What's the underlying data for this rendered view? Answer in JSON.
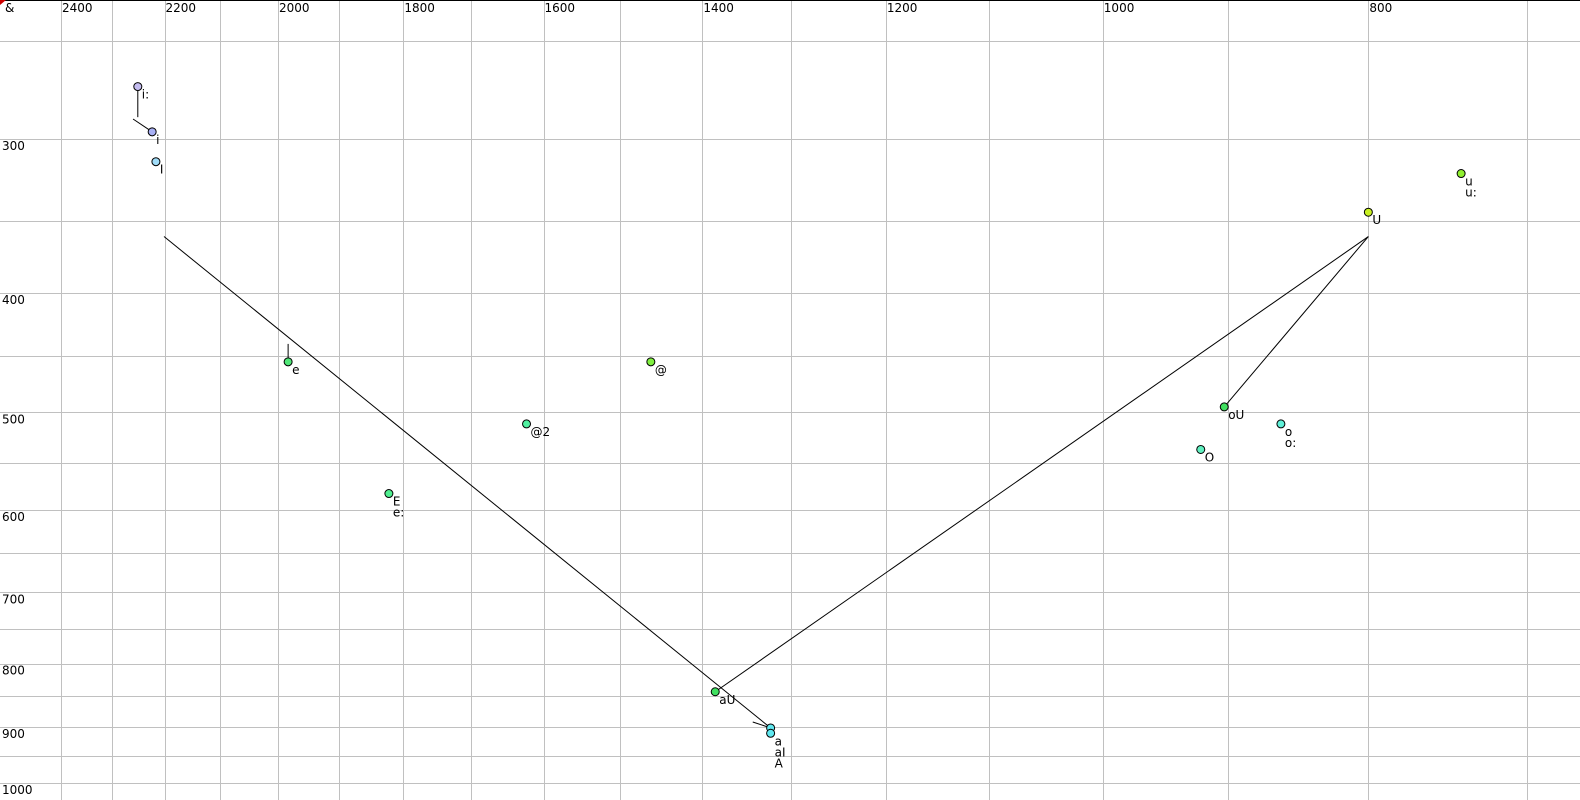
{
  "corner_label": "&",
  "colors": {
    "grid": "#c0c0c0",
    "line": "#000000",
    "corner_marker": "#cc0000"
  },
  "chart_data": {
    "type": "scatter",
    "x_scale": "log",
    "y_scale": "log",
    "x_reversed": true,
    "xlim": [
      2526,
      676
    ],
    "ylim": [
      231,
      1000
    ],
    "grid": true,
    "x_ticks": [
      2400,
      2200,
      2000,
      1800,
      1600,
      1400,
      1200,
      1000,
      800
    ],
    "y_ticks": [
      300,
      400,
      500,
      600,
      700,
      800,
      900,
      1000
    ],
    "x_grid": [
      2400,
      2300,
      2200,
      2100,
      2000,
      1900,
      1800,
      1700,
      1600,
      1500,
      1400,
      1300,
      1200,
      1100,
      1000,
      900,
      800,
      700
    ],
    "y_grid": [
      250,
      300,
      350,
      400,
      450,
      500,
      550,
      600,
      650,
      700,
      750,
      800,
      850,
      900,
      950,
      1000
    ],
    "points": [
      {
        "labels": [
          "i:"
        ],
        "f2": 2250,
        "f1": 272,
        "color": "#c4bcf0"
      },
      {
        "labels": [
          "i"
        ],
        "f2": 2223,
        "f1": 296,
        "color": "#a8b0f4"
      },
      {
        "labels": [
          "I"
        ],
        "f2": 2216,
        "f1": 313,
        "color": "#a0dcf8"
      },
      {
        "labels": [
          "e"
        ],
        "f2": 1983,
        "f1": 455,
        "color": "#50e878"
      },
      {
        "labels": [
          "E",
          "e:"
        ],
        "f2": 1822,
        "f1": 582,
        "color": "#50f090"
      },
      {
        "labels": [
          "@2"
        ],
        "f2": 1623,
        "f1": 511,
        "color": "#50f0a0"
      },
      {
        "labels": [
          "@"
        ],
        "f2": 1462,
        "f1": 455,
        "color": "#80f040"
      },
      {
        "labels": [
          "aU"
        ],
        "f2": 1385,
        "f1": 843,
        "color": "#40e060"
      },
      {
        "labels": [],
        "f2": 1322,
        "f1": 902,
        "color": "#60e8f0"
      },
      {
        "labels": [
          "a",
          "aI",
          "A"
        ],
        "f2": 1322,
        "f1": 911,
        "color": "#60e8f0"
      },
      {
        "labels": [
          "O"
        ],
        "f2": 921,
        "f1": 536,
        "color": "#60f0c0"
      },
      {
        "labels": [
          "oU"
        ],
        "f2": 903,
        "f1": 495,
        "color": "#40e060"
      },
      {
        "labels": [
          "o",
          "o:"
        ],
        "f2": 861,
        "f1": 511,
        "color": "#60f0d8"
      },
      {
        "labels": [
          "U"
        ],
        "f2": 800,
        "f1": 344,
        "color": "#c8f020"
      },
      {
        "labels": [
          "u",
          "u:"
        ],
        "f2": 740,
        "f1": 320,
        "color": "#90f030"
      }
    ],
    "trajectories": [
      {
        "from": [
          2250,
          272
        ],
        "to": [
          2250,
          288
        ]
      },
      {
        "from": [
          2259,
          289
        ],
        "to": [
          2223,
          296
        ]
      },
      {
        "from": [
          1983,
          455
        ],
        "to": [
          1983,
          440
        ]
      },
      {
        "from": [
          1322,
          902
        ],
        "to": [
          2201,
          360
        ]
      },
      {
        "from": [
          1342,
          892
        ],
        "to": [
          1322,
          902
        ]
      },
      {
        "from": [
          1385,
          843
        ],
        "to": [
          800,
          360
        ]
      },
      {
        "from": [
          903,
          495
        ],
        "to": [
          800,
          360
        ]
      }
    ]
  }
}
